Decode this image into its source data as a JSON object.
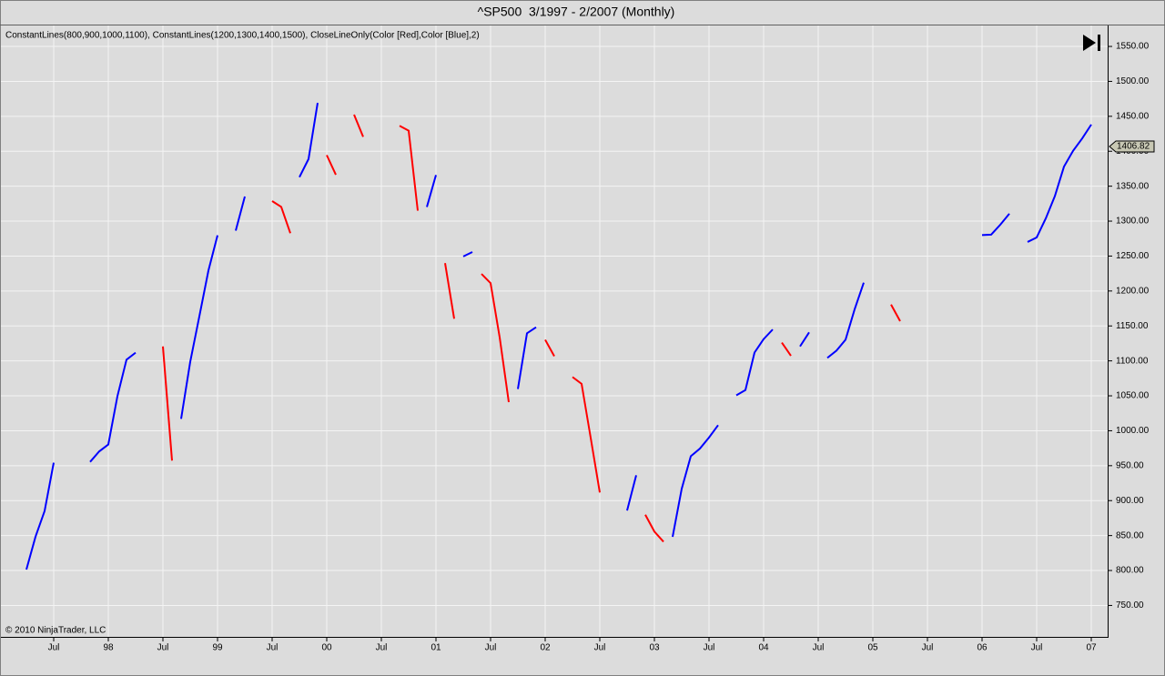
{
  "chart_data": {
    "type": "line",
    "title": "^SP500  3/1997 - 2/2007 (Monthly)",
    "indicator_label": "ConstantLines(800,900,1000,1100), ConstantLines(1200,1300,1400,1500), CloseLineOnly(Color [Red],Color [Blue],2)",
    "copyright": "© 2010 NinjaTrader, LLC",
    "last_price": 1406.82,
    "grid": true,
    "categories": [
      null,
      null,
      null,
      null,
      "Jul",
      null,
      null,
      null,
      null,
      null,
      "98",
      null,
      null,
      null,
      null,
      null,
      "Jul",
      null,
      null,
      null,
      null,
      null,
      "99",
      null,
      null,
      null,
      null,
      null,
      "Jul",
      null,
      null,
      null,
      null,
      null,
      "00",
      null,
      null,
      null,
      null,
      null,
      "Jul",
      null,
      null,
      null,
      null,
      null,
      "01",
      null,
      null,
      null,
      null,
      null,
      "Jul",
      null,
      null,
      null,
      null,
      null,
      "02",
      null,
      null,
      null,
      null,
      null,
      "Jul",
      null,
      null,
      null,
      null,
      null,
      "03",
      null,
      null,
      null,
      null,
      null,
      "Jul",
      null,
      null,
      null,
      null,
      null,
      "04",
      null,
      null,
      null,
      null,
      null,
      "Jul",
      null,
      null,
      null,
      null,
      null,
      "05",
      null,
      null,
      null,
      null,
      null,
      "Jul",
      null,
      null,
      null,
      null,
      null,
      "06",
      null,
      null,
      null,
      null,
      null,
      "Jul",
      null,
      null,
      null,
      null,
      null,
      "07",
      null
    ],
    "series": [
      {
        "color": "#0000ff",
        "values": [
          null,
          801.34,
          848.28,
          885.14,
          954.29,
          null,
          null,
          null,
          955.4,
          970.43,
          980.28,
          1049.34,
          1101.75,
          1111.75,
          null,
          null,
          null,
          null,
          1017.01,
          1098.67,
          1163.63,
          1229.23,
          1279.64,
          null,
          1286.37,
          1335.18,
          null,
          null,
          null,
          null,
          null,
          1362.93,
          1388.91,
          1469.25,
          null,
          null,
          null,
          null,
          null,
          null,
          null,
          null,
          null,
          null,
          null,
          1320.28,
          1366.01,
          null,
          null,
          1249.46,
          1255.82,
          null,
          null,
          null,
          null,
          1059.78,
          1139.45,
          1148.08,
          null,
          null,
          null,
          null,
          null,
          null,
          null,
          null,
          null,
          885.76,
          936.31,
          null,
          null,
          null,
          848.18,
          916.92,
          963.59,
          974.5,
          990.31,
          1008.01,
          null,
          1050.71,
          1058.2,
          1111.92,
          1131.13,
          1144.94,
          null,
          null,
          1120.68,
          1140.84,
          null,
          1104.24,
          1114.58,
          1130.2,
          1173.82,
          1211.92,
          null,
          null,
          null,
          null,
          null,
          null,
          null,
          null,
          null,
          null,
          null,
          null,
          1280.08,
          1280.66,
          1294.83,
          1310.61,
          null,
          1270.2,
          1276.66,
          1303.82,
          1335.85,
          1377.94,
          1400.63,
          1418.3,
          1438.24,
          null
        ]
      },
      {
        "color": "#ff0000",
        "values": [
          null,
          null,
          null,
          null,
          null,
          null,
          null,
          null,
          null,
          null,
          null,
          null,
          null,
          null,
          null,
          null,
          1120.67,
          957.28,
          null,
          null,
          null,
          null,
          null,
          null,
          null,
          null,
          null,
          null,
          1328.72,
          1320.41,
          1282.71,
          null,
          null,
          null,
          1394.46,
          1366.42,
          null,
          1452.43,
          1420.6,
          null,
          null,
          null,
          1436.51,
          1429.4,
          1314.95,
          null,
          null,
          1239.94,
          1160.33,
          null,
          null,
          1224.42,
          1211.23,
          1133.58,
          1040.94,
          null,
          null,
          null,
          1130.2,
          1106.73,
          null,
          1076.92,
          1067.14,
          989.82,
          911.62,
          null,
          null,
          null,
          null,
          879.82,
          855.7,
          841.15,
          null,
          null,
          null,
          null,
          null,
          null,
          null,
          null,
          null,
          null,
          null,
          null,
          1126.21,
          1107.3,
          null,
          null,
          null,
          null,
          null,
          null,
          null,
          null,
          null,
          null,
          1180.59,
          1156.85,
          null,
          null,
          null,
          null,
          null,
          null,
          null,
          null,
          null,
          null,
          null,
          null,
          null,
          null,
          null,
          null,
          null,
          null,
          null,
          null,
          null,
          null
        ]
      }
    ],
    "ylim": [
      705,
      1580
    ],
    "yticks": [
      {
        "value": 750,
        "label": "750.00"
      },
      {
        "value": 800,
        "label": "800.00"
      },
      {
        "value": 850,
        "label": "850.00"
      },
      {
        "value": 900,
        "label": "900.00"
      },
      {
        "value": 950,
        "label": "950.00"
      },
      {
        "value": 1000,
        "label": "1000.00"
      },
      {
        "value": 1050,
        "label": "1050.00"
      },
      {
        "value": 1100,
        "label": "1100.00"
      },
      {
        "value": 1150,
        "label": "1150.00"
      },
      {
        "value": 1200,
        "label": "1200.00"
      },
      {
        "value": 1250,
        "label": "1250.00"
      },
      {
        "value": 1300,
        "label": "1300.00"
      },
      {
        "value": 1350,
        "label": "1350.00"
      },
      {
        "value": 1400,
        "label": "1400.00"
      },
      {
        "value": 1450,
        "label": "1450.00"
      },
      {
        "value": 1500,
        "label": "1500.00"
      },
      {
        "value": 1550,
        "label": "1550.00"
      }
    ]
  }
}
